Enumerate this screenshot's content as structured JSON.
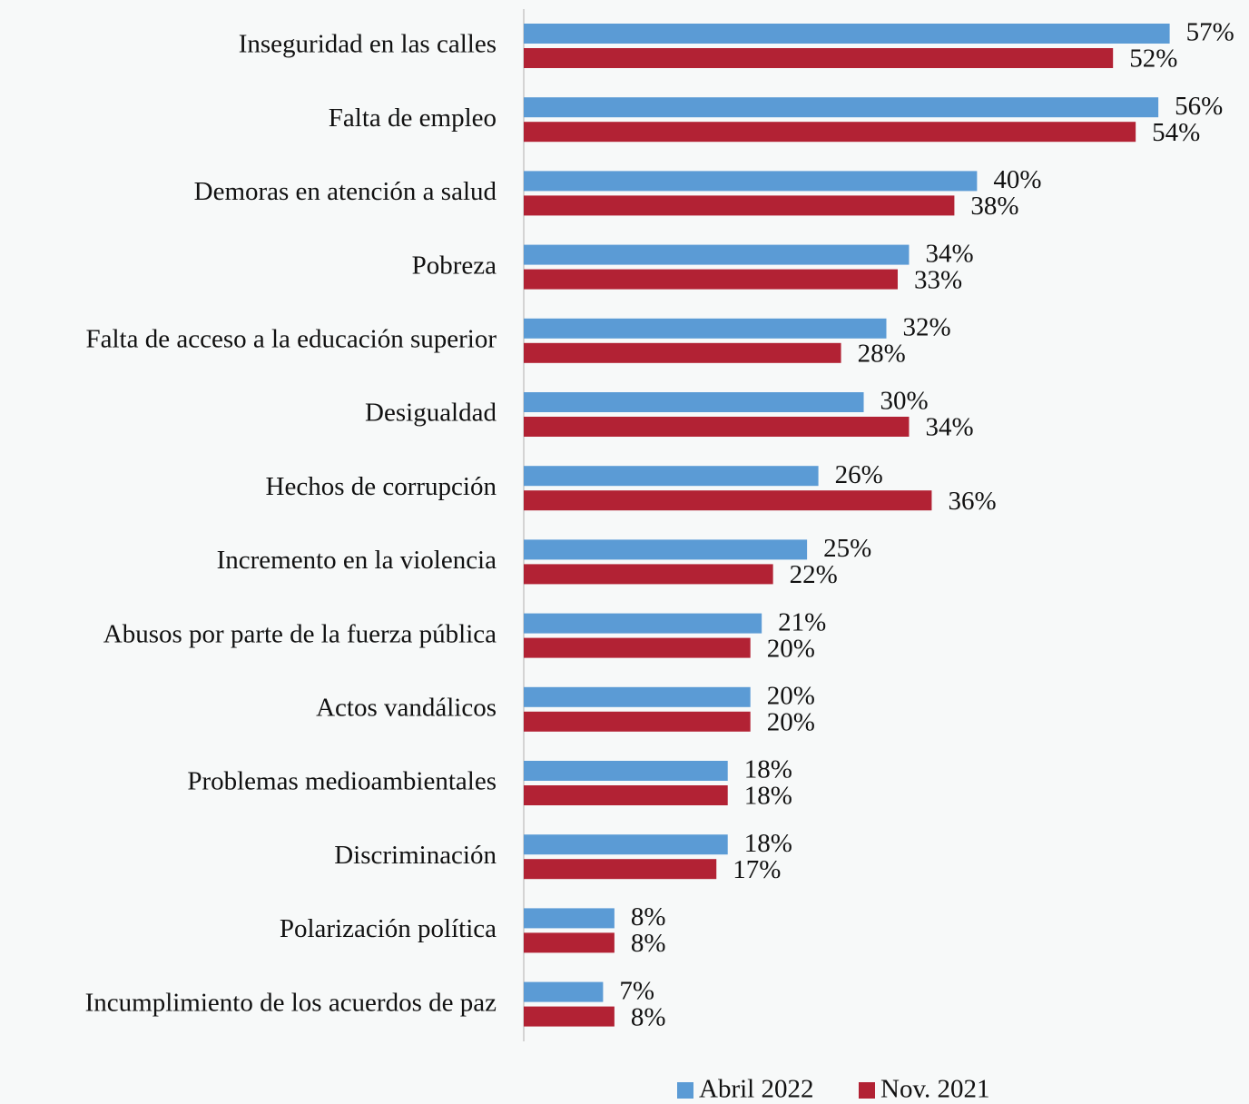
{
  "chart_data": {
    "type": "barh",
    "categories": [
      "Inseguridad en las calles",
      "Falta de empleo",
      "Demoras en atención a salud",
      "Pobreza",
      "Falta de acceso a la educación superior",
      "Desigualdad",
      "Hechos de corrupción",
      "Incremento en la violencia",
      "Abusos por parte de la fuerza pública",
      "Actos vandálicos",
      "Problemas medioambientales",
      "Discriminación",
      "Polarización política",
      "Incumplimiento de los acuerdos de paz"
    ],
    "series": [
      {
        "name": "Abril 2022",
        "color": "#5b9bd5",
        "values": [
          57,
          56,
          40,
          34,
          32,
          30,
          26,
          25,
          21,
          20,
          18,
          18,
          8,
          7
        ],
        "value_labels": [
          "57%",
          "56%",
          "40%",
          "34%",
          "32%",
          "30%",
          "26%",
          "25%",
          "21%",
          "20%",
          "18%",
          "18%",
          "8%",
          "7%"
        ]
      },
      {
        "name": "Nov. 2021",
        "color": "#b22234",
        "values": [
          52,
          54,
          38,
          33,
          28,
          34,
          36,
          22,
          20,
          20,
          18,
          17,
          8,
          8
        ],
        "value_labels": [
          "52%",
          "54%",
          "38%",
          "33%",
          "28%",
          "34%",
          "36%",
          "22%",
          "20%",
          "20%",
          "18%",
          "17%",
          "8%",
          "8%"
        ]
      }
    ],
    "xlim": [
      0,
      64
    ],
    "grid": false,
    "legend": "bottom"
  }
}
